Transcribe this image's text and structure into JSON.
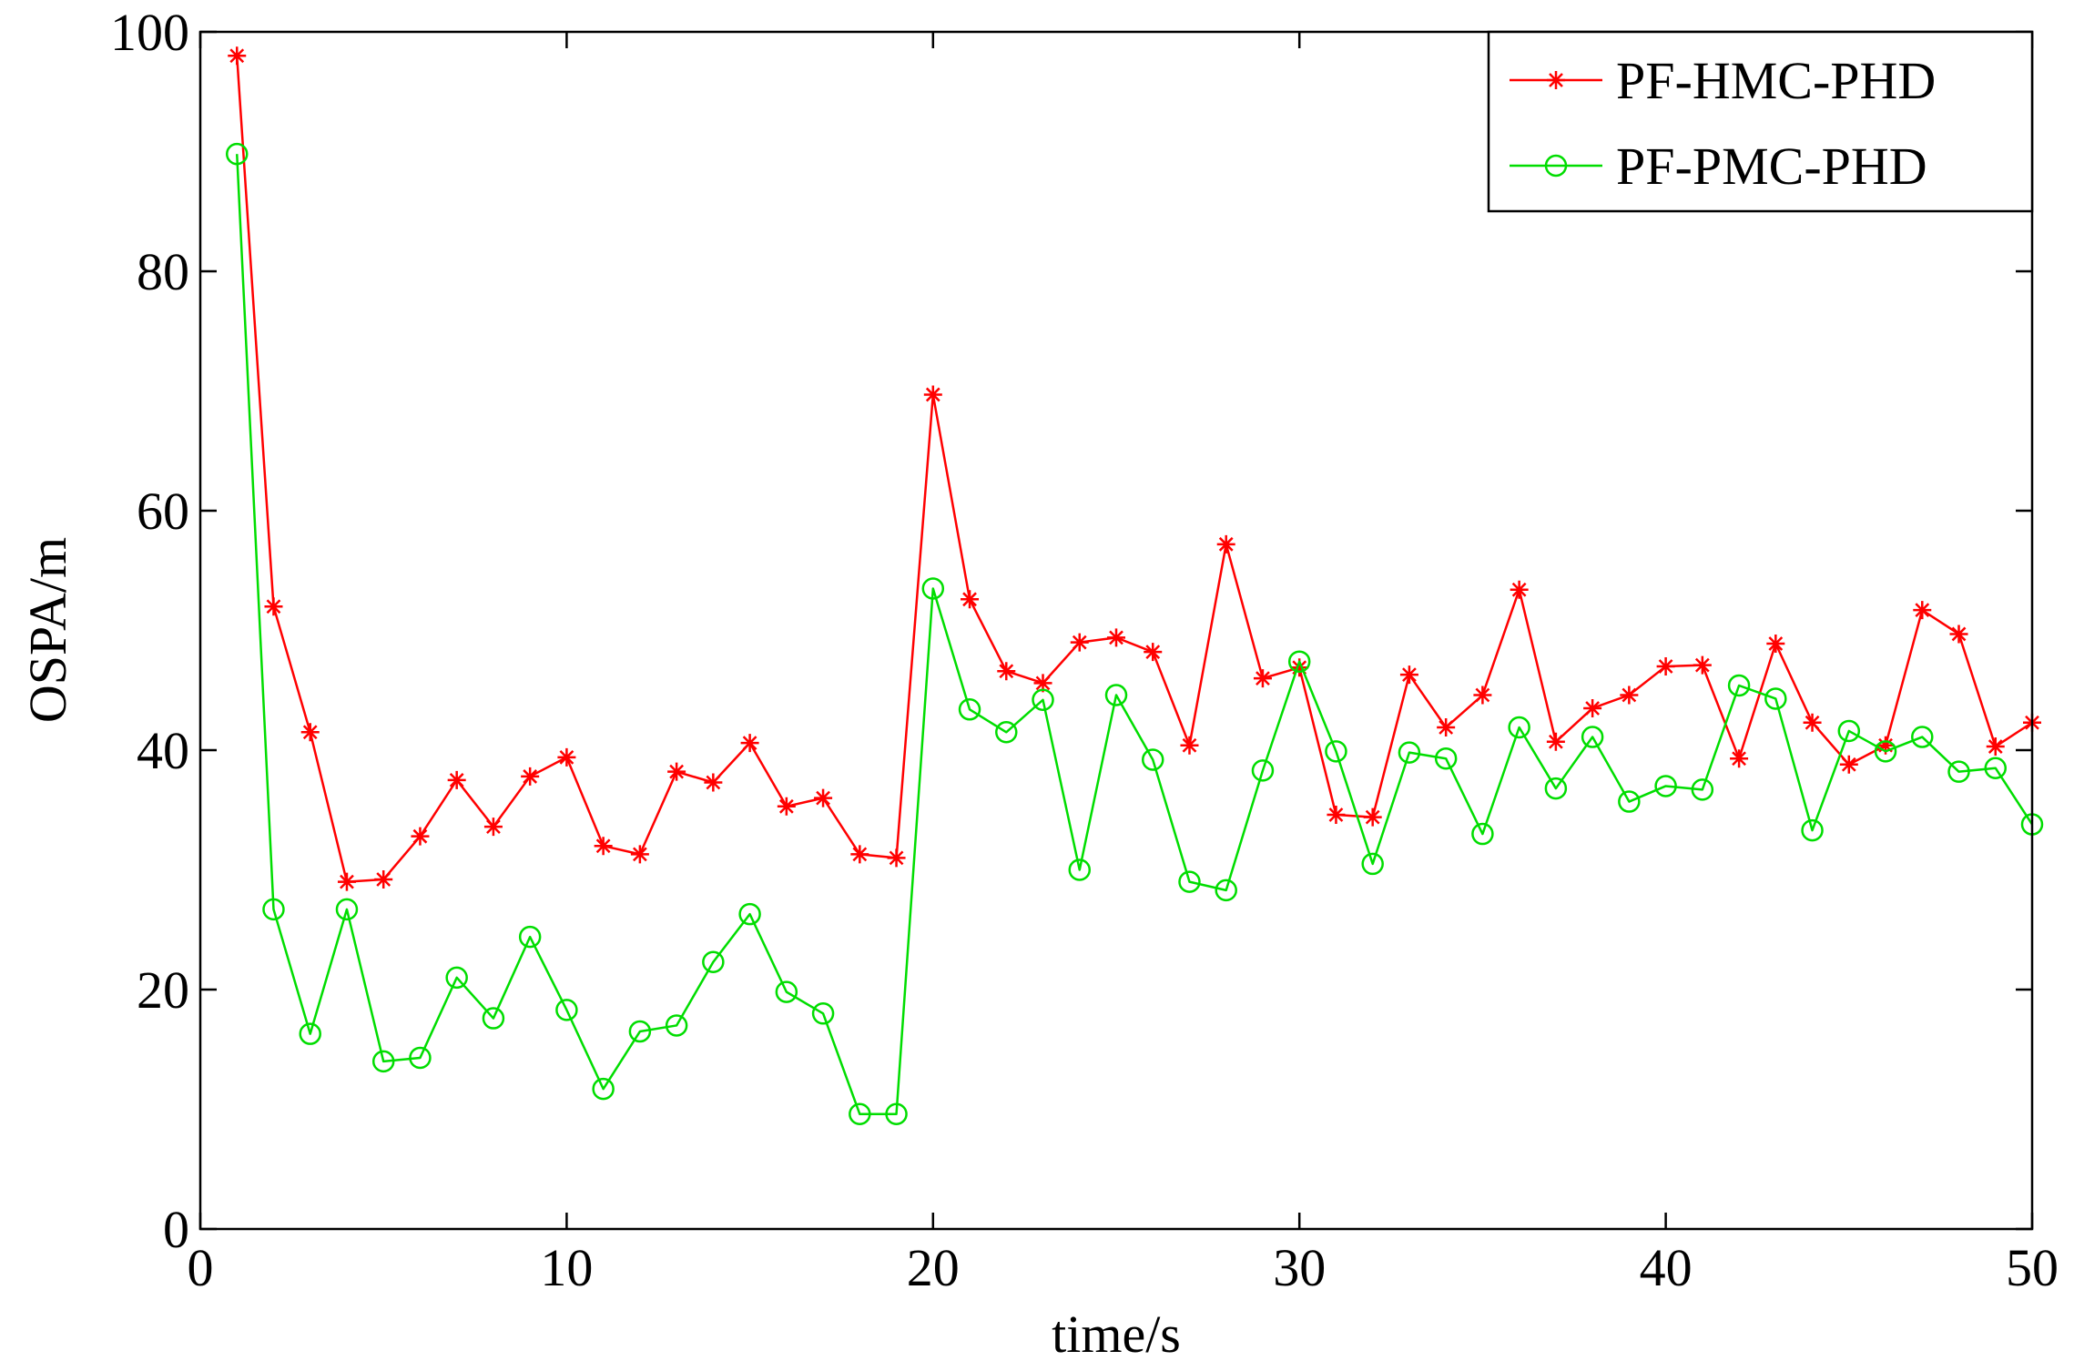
{
  "chart_data": {
    "type": "line",
    "title": "",
    "xlabel": "time/s",
    "ylabel": "OSPA/m",
    "xlim": [
      0,
      50
    ],
    "ylim": [
      0,
      100
    ],
    "xticks": [
      0,
      10,
      20,
      30,
      40,
      50
    ],
    "yticks": [
      0,
      20,
      40,
      60,
      80,
      100
    ],
    "grid": false,
    "legend_position": "top-right",
    "x": [
      1,
      2,
      3,
      4,
      5,
      6,
      7,
      8,
      9,
      10,
      11,
      12,
      13,
      14,
      15,
      16,
      17,
      18,
      19,
      20,
      21,
      22,
      23,
      24,
      25,
      26,
      27,
      28,
      29,
      30,
      31,
      32,
      33,
      34,
      35,
      36,
      37,
      38,
      39,
      40,
      41,
      42,
      43,
      44,
      45,
      46,
      47,
      48,
      49,
      50
    ],
    "series": [
      {
        "name": "PF-HMC-PHD",
        "color": "#ff0000",
        "marker": "star",
        "values": [
          98,
          52,
          41.5,
          29,
          29.2,
          32.8,
          37.5,
          33.6,
          37.8,
          39.4,
          32,
          31.3,
          38.2,
          37.3,
          40.6,
          35.3,
          36,
          31.3,
          31,
          69.7,
          52.6,
          46.6,
          45.6,
          49,
          49.4,
          48.2,
          40.4,
          57.2,
          46,
          46.9,
          34.6,
          34.4,
          46.3,
          41.9,
          44.6,
          53.4,
          40.7,
          43.5,
          44.6,
          47,
          47.1,
          39.3,
          48.9,
          42.3,
          38.8,
          40.4,
          51.7,
          49.7,
          40.3,
          42.3
        ]
      },
      {
        "name": "PF-PMC-PHD",
        "color": "#00dd00",
        "marker": "circle",
        "values": [
          89.8,
          26.7,
          16.3,
          26.7,
          14,
          14.3,
          21,
          17.6,
          24.4,
          18.3,
          11.7,
          16.5,
          17,
          22.3,
          26.3,
          19.8,
          18,
          9.6,
          9.6,
          53.5,
          43.4,
          41.5,
          44.2,
          30,
          44.6,
          39.2,
          29,
          28.3,
          38.3,
          47.4,
          39.9,
          30.5,
          39.8,
          39.3,
          33,
          41.9,
          36.8,
          41.1,
          35.7,
          37,
          36.7,
          45.4,
          44.3,
          33.3,
          41.6,
          39.9,
          41.1,
          38.2,
          38.5,
          33.8
        ]
      }
    ]
  }
}
